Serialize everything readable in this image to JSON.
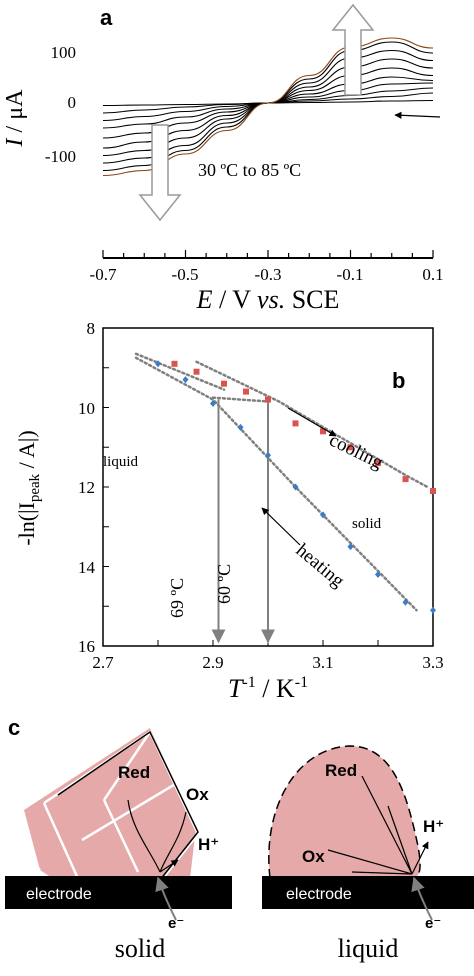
{
  "panel_a": {
    "letter": "a",
    "ylabel_italic": "I",
    "ylabel_rest": " / μA",
    "xlabel_italic": "E",
    "xlabel_mid": " / V ",
    "xlabel_vs": "vs.",
    "xlabel_end": " SCE",
    "annotation": "30 ºC to 85 ºC",
    "yticks": [
      "100",
      "0",
      "-100"
    ],
    "xticks": [
      "-0.7",
      "-0.5",
      "-0.3",
      "-0.1",
      "0.1"
    ]
  },
  "panel_b": {
    "letter": "b",
    "ylabel": "-ln(|I",
    "ylabel_sub": "peak",
    "ylabel_end": " / A|)",
    "xlabel_italic": "T",
    "xlabel_sup": "-1",
    "xlabel_rest": " / K",
    "xlabel_sup2": "-1",
    "label_cooling": "cooling",
    "label_heating": "heating",
    "label_liquid": "liquid",
    "label_solid": "solid",
    "marker_69": "69 ºC",
    "marker_60": "60 ºC",
    "yticks": [
      "8",
      "10",
      "12",
      "14",
      "16"
    ],
    "xticks": [
      "2.7",
      "2.9",
      "3.1",
      "3.3"
    ],
    "colors": {
      "cooling": "#d9534f",
      "heating": "#3b7bc8",
      "fit": "#808080"
    }
  },
  "panel_c": {
    "letter": "c",
    "left_caption": "solid",
    "right_caption": "liquid",
    "electrode": "electrode",
    "red": "Red",
    "ox": "Ox",
    "h_plus": "H⁺",
    "e_minus": "e⁻",
    "fill_color": "#e6a9a9"
  },
  "chart_data": [
    {
      "type": "line",
      "panel": "a",
      "xlabel": "E / V vs. SCE",
      "ylabel": "I / μA",
      "xlim": [
        -0.7,
        0.1
      ],
      "ylim": [
        -150,
        130
      ],
      "annotation": "30 ºC to 85 ºC",
      "series": [
        {
          "x": [
            -0.7,
            -0.6,
            -0.5,
            -0.4,
            -0.3,
            -0.2,
            -0.1,
            0.0,
            0.1
          ],
          "y": [
            -5,
            -4,
            -3,
            -2,
            0,
            1,
            2,
            4,
            5
          ]
        },
        {
          "x": [
            -0.7,
            -0.6,
            -0.5,
            -0.4,
            -0.3,
            -0.2,
            -0.1,
            0.0,
            0.1
          ],
          "y": [
            -20,
            -14,
            -8,
            -3,
            0,
            4,
            8,
            13,
            20
          ]
        },
        {
          "x": [
            -0.7,
            -0.6,
            -0.5,
            -0.4,
            -0.3,
            -0.2,
            -0.1,
            0.0,
            0.1
          ],
          "y": [
            -35,
            -27,
            -17,
            -7,
            0,
            7,
            15,
            24,
            30
          ]
        },
        {
          "x": [
            -0.7,
            -0.6,
            -0.5,
            -0.4,
            -0.3,
            -0.2,
            -0.1,
            0.0,
            0.1
          ],
          "y": [
            -50,
            -42,
            -28,
            -12,
            0,
            12,
            25,
            38,
            40
          ]
        },
        {
          "x": [
            -0.7,
            -0.6,
            -0.5,
            -0.4,
            -0.3,
            -0.2,
            -0.1,
            0.0,
            0.1
          ],
          "y": [
            -70,
            -60,
            -40,
            -18,
            0,
            18,
            38,
            52,
            45
          ]
        },
        {
          "x": [
            -0.7,
            -0.6,
            -0.5,
            -0.4,
            -0.3,
            -0.2,
            -0.1,
            0.0,
            0.1
          ],
          "y": [
            -90,
            -78,
            -55,
            -25,
            0,
            25,
            55,
            70,
            55
          ]
        },
        {
          "x": [
            -0.7,
            -0.6,
            -0.5,
            -0.4,
            -0.3,
            -0.2,
            -0.1,
            0.0,
            0.1
          ],
          "y": [
            -105,
            -95,
            -70,
            -32,
            0,
            32,
            72,
            88,
            70
          ]
        },
        {
          "x": [
            -0.7,
            -0.6,
            -0.5,
            -0.4,
            -0.3,
            -0.2,
            -0.1,
            0.0,
            0.1
          ],
          "y": [
            -120,
            -110,
            -85,
            -40,
            0,
            40,
            90,
            105,
            85
          ]
        },
        {
          "x": [
            -0.7,
            -0.6,
            -0.5,
            -0.4,
            -0.3,
            -0.2,
            -0.1,
            0.0,
            0.1
          ],
          "y": [
            -135,
            -125,
            -95,
            -48,
            0,
            48,
            105,
            122,
            100
          ]
        },
        {
          "x": [
            -0.7,
            -0.6,
            -0.5,
            -0.4,
            -0.3,
            -0.2,
            -0.1,
            0.0,
            0.1
          ],
          "y": [
            -145,
            -135,
            -102,
            -55,
            0,
            55,
            112,
            130,
            110
          ]
        }
      ]
    },
    {
      "type": "scatter",
      "panel": "b",
      "xlabel": "T-1 / K-1",
      "ylabel": "-ln(|Ipeak / A|)",
      "xlim": [
        2.7,
        3.3
      ],
      "ylim": [
        16,
        8
      ],
      "series": [
        {
          "name": "cooling",
          "x": [
            2.83,
            2.87,
            2.92,
            2.96,
            3.0,
            3.05,
            3.1,
            3.15,
            3.2,
            3.25,
            3.3
          ],
          "y": [
            8.9,
            9.1,
            9.4,
            9.6,
            9.8,
            10.4,
            10.6,
            11.0,
            11.4,
            11.8,
            12.1
          ]
        },
        {
          "name": "heating",
          "x": [
            2.8,
            2.85,
            2.9,
            2.95,
            3.0,
            3.05,
            3.1,
            3.15,
            3.2,
            3.25,
            3.3
          ],
          "y": [
            8.9,
            9.3,
            9.9,
            10.5,
            11.2,
            12.0,
            12.7,
            13.5,
            14.2,
            14.9,
            15.1
          ]
        }
      ],
      "markers": [
        {
          "label": "69 ºC",
          "x": 2.91,
          "y_from": 9.8,
          "y_to": 16
        },
        {
          "label": "60 ºC",
          "x": 3.0,
          "y_from": 9.8,
          "y_to": 16
        }
      ]
    }
  ]
}
